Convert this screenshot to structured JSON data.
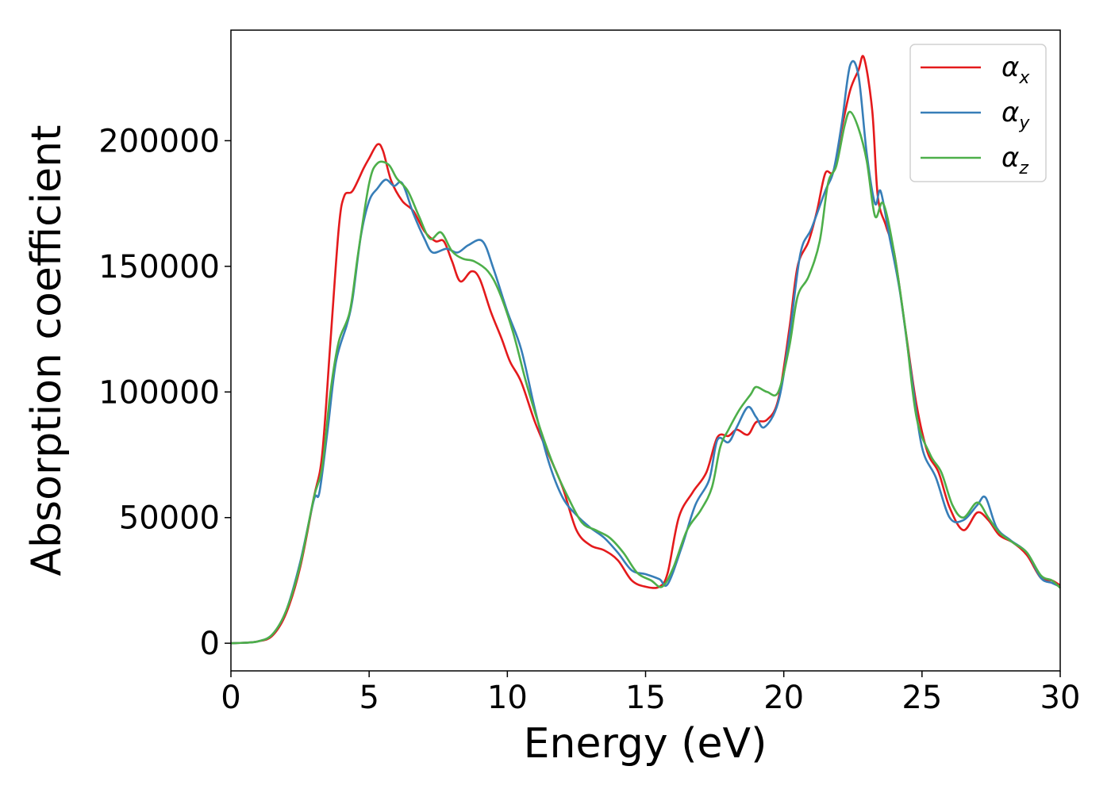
{
  "chart_data": {
    "type": "line",
    "title": "",
    "xlabel": "Energy (eV)",
    "ylabel": "Absorption coefficient",
    "xlim": [
      0,
      30
    ],
    "ylim": [
      -11000,
      244000
    ],
    "xticks": [
      0,
      5,
      10,
      15,
      20,
      25,
      30
    ],
    "yticks": [
      0,
      50000,
      100000,
      150000,
      200000
    ],
    "grid": false,
    "legend_position": "top-right",
    "series": [
      {
        "name": "α",
        "subscript": "x",
        "color": "#e41a1c",
        "points": [
          [
            0,
            0
          ],
          [
            0.5,
            200
          ],
          [
            1.0,
            800
          ],
          [
            1.5,
            3000
          ],
          [
            2.0,
            12000
          ],
          [
            2.5,
            30000
          ],
          [
            3.0,
            58000
          ],
          [
            3.3,
            75000
          ],
          [
            3.6,
            120000
          ],
          [
            3.9,
            165000
          ],
          [
            4.1,
            178000
          ],
          [
            4.4,
            180000
          ],
          [
            4.8,
            189000
          ],
          [
            5.0,
            193000
          ],
          [
            5.3,
            198500
          ],
          [
            5.5,
            196000
          ],
          [
            5.8,
            184000
          ],
          [
            6.2,
            176000
          ],
          [
            6.6,
            172000
          ],
          [
            7.0,
            164000
          ],
          [
            7.4,
            160000
          ],
          [
            7.7,
            160000
          ],
          [
            8.0,
            152000
          ],
          [
            8.3,
            144000
          ],
          [
            8.7,
            148000
          ],
          [
            9.0,
            145000
          ],
          [
            9.4,
            132000
          ],
          [
            9.8,
            121000
          ],
          [
            10.1,
            112000
          ],
          [
            10.5,
            104000
          ],
          [
            11.0,
            88000
          ],
          [
            11.5,
            75000
          ],
          [
            12.0,
            62000
          ],
          [
            12.5,
            45000
          ],
          [
            13.0,
            39000
          ],
          [
            13.5,
            37000
          ],
          [
            14.0,
            33000
          ],
          [
            14.5,
            25000
          ],
          [
            15.0,
            22500
          ],
          [
            15.5,
            22500
          ],
          [
            15.8,
            28000
          ],
          [
            16.2,
            50000
          ],
          [
            16.7,
            60000
          ],
          [
            17.2,
            68000
          ],
          [
            17.6,
            82000
          ],
          [
            18.0,
            82500
          ],
          [
            18.3,
            85000
          ],
          [
            18.7,
            83000
          ],
          [
            19.0,
            88000
          ],
          [
            19.4,
            89000
          ],
          [
            19.8,
            97000
          ],
          [
            20.2,
            125000
          ],
          [
            20.5,
            150000
          ],
          [
            20.9,
            160000
          ],
          [
            21.2,
            172000
          ],
          [
            21.5,
            187000
          ],
          [
            21.8,
            188000
          ],
          [
            22.1,
            205000
          ],
          [
            22.4,
            220000
          ],
          [
            22.7,
            228000
          ],
          [
            22.9,
            233000
          ],
          [
            23.2,
            212000
          ],
          [
            23.4,
            178000
          ],
          [
            23.7,
            166000
          ],
          [
            24.0,
            155000
          ],
          [
            24.4,
            125000
          ],
          [
            24.8,
            95000
          ],
          [
            25.2,
            76000
          ],
          [
            25.6,
            68000
          ],
          [
            26.0,
            54000
          ],
          [
            26.5,
            45000
          ],
          [
            27.0,
            52000
          ],
          [
            27.4,
            49000
          ],
          [
            27.8,
            43000
          ],
          [
            28.3,
            40000
          ],
          [
            28.8,
            35000
          ],
          [
            29.3,
            26000
          ],
          [
            29.7,
            25000
          ],
          [
            30.0,
            23000
          ]
        ]
      },
      {
        "name": "α",
        "subscript": "y",
        "color": "#377eb8",
        "points": [
          [
            0,
            0
          ],
          [
            0.5,
            200
          ],
          [
            1.0,
            800
          ],
          [
            1.5,
            3500
          ],
          [
            2.0,
            13000
          ],
          [
            2.5,
            32000
          ],
          [
            3.0,
            57000
          ],
          [
            3.2,
            60000
          ],
          [
            3.5,
            85000
          ],
          [
            3.8,
            112000
          ],
          [
            4.2,
            127000
          ],
          [
            4.4,
            137000
          ],
          [
            4.7,
            162000
          ],
          [
            5.0,
            176000
          ],
          [
            5.3,
            181000
          ],
          [
            5.6,
            184500
          ],
          [
            5.9,
            182000
          ],
          [
            6.2,
            183000
          ],
          [
            6.6,
            171000
          ],
          [
            7.0,
            161000
          ],
          [
            7.3,
            155500
          ],
          [
            7.8,
            157000
          ],
          [
            8.2,
            155500
          ],
          [
            8.6,
            158500
          ],
          [
            9.1,
            160000
          ],
          [
            9.5,
            149000
          ],
          [
            10.0,
            132000
          ],
          [
            10.5,
            117000
          ],
          [
            11.0,
            93000
          ],
          [
            11.5,
            72000
          ],
          [
            12.0,
            58000
          ],
          [
            12.5,
            51000
          ],
          [
            13.0,
            46000
          ],
          [
            13.5,
            42000
          ],
          [
            14.0,
            36000
          ],
          [
            14.5,
            29000
          ],
          [
            15.0,
            27500
          ],
          [
            15.5,
            25500
          ],
          [
            15.8,
            23500
          ],
          [
            16.3,
            38000
          ],
          [
            16.8,
            55000
          ],
          [
            17.3,
            65000
          ],
          [
            17.6,
            81000
          ],
          [
            18.0,
            80000
          ],
          [
            18.3,
            86000
          ],
          [
            18.7,
            94000
          ],
          [
            19.0,
            90000
          ],
          [
            19.3,
            86000
          ],
          [
            19.8,
            96000
          ],
          [
            20.2,
            122000
          ],
          [
            20.6,
            155000
          ],
          [
            21.0,
            165000
          ],
          [
            21.5,
            180000
          ],
          [
            21.8,
            188000
          ],
          [
            22.1,
            207000
          ],
          [
            22.4,
            230000
          ],
          [
            22.7,
            226000
          ],
          [
            23.0,
            195000
          ],
          [
            23.3,
            175000
          ],
          [
            23.5,
            180000
          ],
          [
            23.8,
            163000
          ],
          [
            24.2,
            140000
          ],
          [
            24.6,
            108000
          ],
          [
            25.0,
            78000
          ],
          [
            25.5,
            66000
          ],
          [
            26.0,
            50000
          ],
          [
            26.5,
            49000
          ],
          [
            27.0,
            55000
          ],
          [
            27.3,
            58000
          ],
          [
            27.7,
            46000
          ],
          [
            28.2,
            41000
          ],
          [
            28.8,
            36000
          ],
          [
            29.3,
            26000
          ],
          [
            29.7,
            24000
          ],
          [
            30.0,
            22500
          ]
        ]
      },
      {
        "name": "α",
        "subscript": "z",
        "color": "#4daf4a",
        "points": [
          [
            0,
            0
          ],
          [
            0.5,
            200
          ],
          [
            1.0,
            800
          ],
          [
            1.5,
            3500
          ],
          [
            2.0,
            13000
          ],
          [
            2.5,
            31000
          ],
          [
            3.0,
            58000
          ],
          [
            3.3,
            70000
          ],
          [
            3.6,
            100000
          ],
          [
            3.9,
            120000
          ],
          [
            4.3,
            132000
          ],
          [
            4.6,
            155000
          ],
          [
            5.0,
            183000
          ],
          [
            5.3,
            191000
          ],
          [
            5.7,
            190500
          ],
          [
            6.0,
            185000
          ],
          [
            6.4,
            180000
          ],
          [
            6.8,
            170000
          ],
          [
            7.2,
            161000
          ],
          [
            7.6,
            163500
          ],
          [
            8.0,
            156000
          ],
          [
            8.4,
            153000
          ],
          [
            8.8,
            152000
          ],
          [
            9.3,
            148000
          ],
          [
            9.7,
            140000
          ],
          [
            10.2,
            124000
          ],
          [
            10.7,
            103000
          ],
          [
            11.2,
            85000
          ],
          [
            11.7,
            70000
          ],
          [
            12.2,
            58000
          ],
          [
            12.7,
            48000
          ],
          [
            13.2,
            45000
          ],
          [
            13.7,
            42000
          ],
          [
            14.2,
            36000
          ],
          [
            14.7,
            28000
          ],
          [
            15.2,
            25000
          ],
          [
            15.6,
            22500
          ],
          [
            16.0,
            30000
          ],
          [
            16.5,
            45000
          ],
          [
            17.0,
            53000
          ],
          [
            17.4,
            62000
          ],
          [
            17.7,
            78000
          ],
          [
            18.0,
            85000
          ],
          [
            18.4,
            93000
          ],
          [
            18.8,
            99000
          ],
          [
            19.0,
            102000
          ],
          [
            19.4,
            100000
          ],
          [
            19.8,
            100000
          ],
          [
            20.2,
            118000
          ],
          [
            20.5,
            138000
          ],
          [
            20.9,
            146000
          ],
          [
            21.3,
            160000
          ],
          [
            21.6,
            183000
          ],
          [
            21.9,
            190000
          ],
          [
            22.2,
            206000
          ],
          [
            22.4,
            211500
          ],
          [
            22.7,
            205000
          ],
          [
            23.0,
            192000
          ],
          [
            23.3,
            170000
          ],
          [
            23.6,
            175000
          ],
          [
            24.0,
            155000
          ],
          [
            24.4,
            125000
          ],
          [
            24.8,
            90000
          ],
          [
            25.3,
            75000
          ],
          [
            25.7,
            68000
          ],
          [
            26.1,
            55000
          ],
          [
            26.5,
            50000
          ],
          [
            27.0,
            56000
          ],
          [
            27.4,
            50000
          ],
          [
            27.8,
            44000
          ],
          [
            28.3,
            40000
          ],
          [
            28.8,
            36000
          ],
          [
            29.3,
            27000
          ],
          [
            29.7,
            25000
          ],
          [
            30.0,
            22000
          ]
        ]
      }
    ]
  }
}
